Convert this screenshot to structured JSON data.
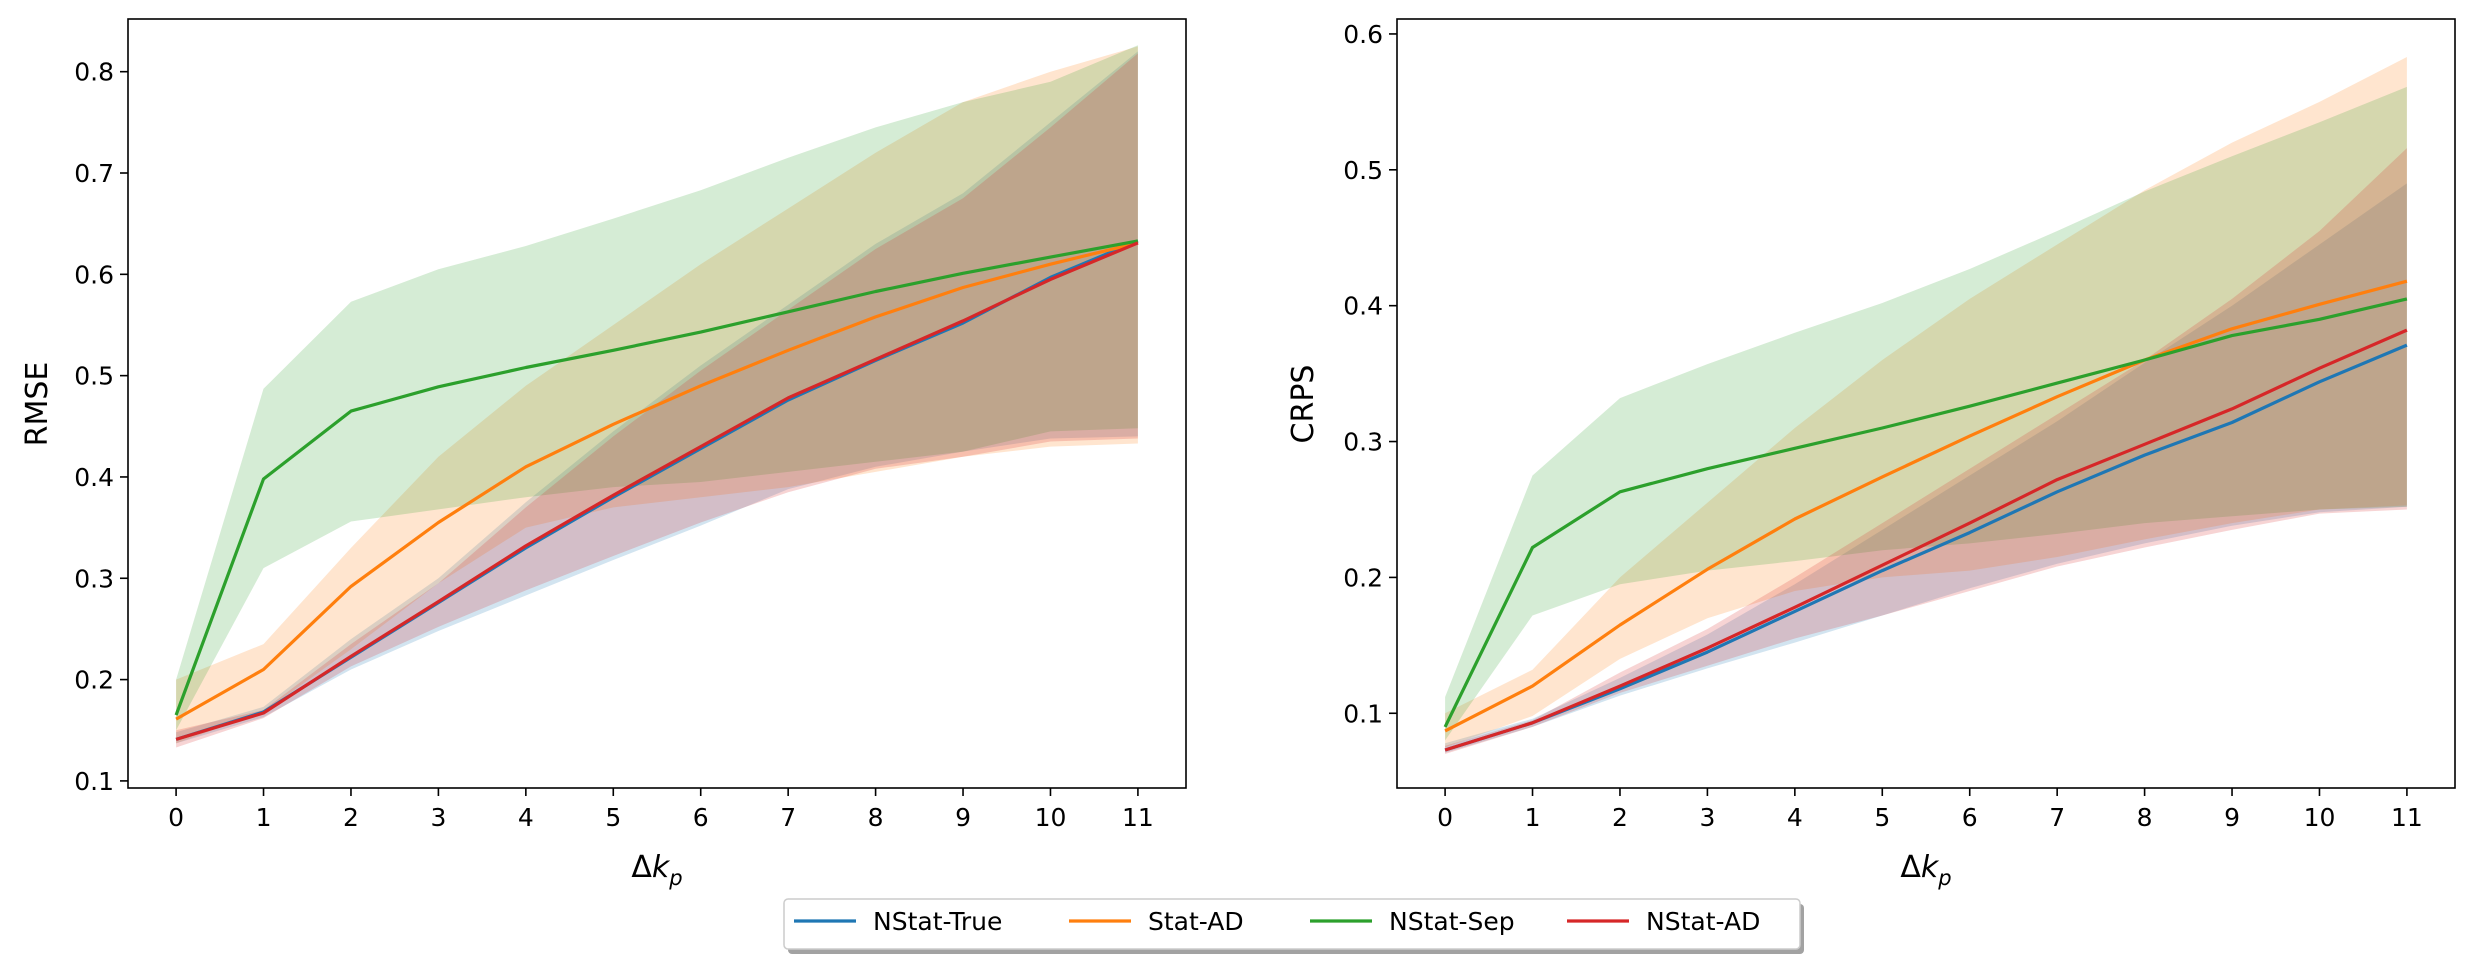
{
  "colors": {
    "NStat-True": "#1f77b4",
    "Stat-AD": "#ff7f0e",
    "NStat-Sep": "#2ca02c",
    "NStat-AD": "#d62728"
  },
  "legend": {
    "position": "bottom-center",
    "entries": [
      "NStat-True",
      "Stat-AD",
      "NStat-Sep",
      "NStat-AD"
    ]
  },
  "chart_data": [
    {
      "type": "line",
      "ylabel": "RMSE",
      "xlabel": "Δk_p",
      "x": [
        0,
        1,
        2,
        3,
        4,
        5,
        6,
        7,
        8,
        9,
        10,
        11
      ],
      "xlim": [
        -0.55,
        11.55
      ],
      "ylim": [
        0.093,
        0.852
      ],
      "yticks": [
        0.1,
        0.2,
        0.3,
        0.4,
        0.5,
        0.6,
        0.7,
        0.8
      ],
      "yticklabels": [
        "0.1",
        "0.2",
        "0.3",
        "0.4",
        "0.5",
        "0.6",
        "0.7",
        "0.8"
      ],
      "series": [
        {
          "name": "NStat-True",
          "values": [
            0.141,
            0.168,
            0.222,
            0.276,
            0.33,
            0.38,
            0.428,
            0.476,
            0.515,
            0.552,
            0.597,
            0.633
          ],
          "band_low": [
            0.137,
            0.163,
            0.21,
            0.248,
            0.283,
            0.318,
            0.352,
            0.388,
            0.41,
            0.425,
            0.438,
            0.44
          ],
          "band_high": [
            0.148,
            0.173,
            0.24,
            0.3,
            0.375,
            0.445,
            0.51,
            0.57,
            0.63,
            0.68,
            0.75,
            0.82
          ]
        },
        {
          "name": "Stat-AD",
          "values": [
            0.161,
            0.21,
            0.292,
            0.355,
            0.41,
            0.452,
            0.49,
            0.525,
            0.558,
            0.587,
            0.61,
            0.631
          ],
          "band_low": [
            0.137,
            0.168,
            0.23,
            0.295,
            0.35,
            0.37,
            0.38,
            0.39,
            0.405,
            0.42,
            0.43,
            0.433
          ],
          "band_high": [
            0.2,
            0.235,
            0.33,
            0.42,
            0.49,
            0.55,
            0.61,
            0.665,
            0.72,
            0.77,
            0.8,
            0.825
          ]
        },
        {
          "name": "NStat-Sep",
          "values": [
            0.165,
            0.398,
            0.465,
            0.489,
            0.508,
            0.525,
            0.543,
            0.563,
            0.583,
            0.601,
            0.617,
            0.633
          ],
          "band_low": [
            0.15,
            0.31,
            0.356,
            0.368,
            0.38,
            0.39,
            0.395,
            0.405,
            0.415,
            0.425,
            0.445,
            0.448
          ],
          "band_high": [
            0.2,
            0.487,
            0.573,
            0.605,
            0.628,
            0.655,
            0.683,
            0.715,
            0.745,
            0.77,
            0.79,
            0.826
          ]
        },
        {
          "name": "NStat-AD",
          "values": [
            0.141,
            0.167,
            0.223,
            0.277,
            0.332,
            0.382,
            0.43,
            0.478,
            0.516,
            0.554,
            0.595,
            0.631
          ],
          "band_low": [
            0.133,
            0.162,
            0.213,
            0.252,
            0.288,
            0.322,
            0.355,
            0.385,
            0.408,
            0.42,
            0.435,
            0.438
          ],
          "band_high": [
            0.15,
            0.17,
            0.235,
            0.295,
            0.37,
            0.44,
            0.505,
            0.565,
            0.625,
            0.675,
            0.745,
            0.818
          ]
        }
      ]
    },
    {
      "type": "line",
      "ylabel": "CRPS",
      "xlabel": "Δk_p",
      "x": [
        0,
        1,
        2,
        3,
        4,
        5,
        6,
        7,
        8,
        9,
        10,
        11
      ],
      "xlim": [
        -0.55,
        11.55
      ],
      "ylim": [
        0.045,
        0.611
      ],
      "yticks": [
        0.1,
        0.2,
        0.3,
        0.4,
        0.5,
        0.6
      ],
      "yticklabels": [
        "0.1",
        "0.2",
        "0.3",
        "0.4",
        "0.5",
        "0.6"
      ],
      "series": [
        {
          "name": "NStat-True",
          "values": [
            0.073,
            0.093,
            0.118,
            0.145,
            0.175,
            0.205,
            0.233,
            0.263,
            0.29,
            0.314,
            0.344,
            0.371
          ],
          "band_low": [
            0.071,
            0.09,
            0.113,
            0.133,
            0.152,
            0.172,
            0.192,
            0.21,
            0.225,
            0.238,
            0.248,
            0.252
          ],
          "band_high": [
            0.078,
            0.096,
            0.126,
            0.158,
            0.195,
            0.235,
            0.275,
            0.315,
            0.358,
            0.4,
            0.445,
            0.49
          ]
        },
        {
          "name": "Stat-AD",
          "values": [
            0.087,
            0.12,
            0.165,
            0.206,
            0.243,
            0.274,
            0.304,
            0.333,
            0.36,
            0.383,
            0.401,
            0.418
          ],
          "band_low": [
            0.075,
            0.098,
            0.14,
            0.17,
            0.19,
            0.2,
            0.205,
            0.215,
            0.228,
            0.24,
            0.25,
            0.253
          ],
          "band_high": [
            0.1,
            0.132,
            0.2,
            0.255,
            0.31,
            0.36,
            0.405,
            0.445,
            0.485,
            0.52,
            0.55,
            0.583
          ]
        },
        {
          "name": "NStat-Sep",
          "values": [
            0.09,
            0.222,
            0.263,
            0.28,
            0.295,
            0.31,
            0.326,
            0.343,
            0.36,
            0.378,
            0.39,
            0.405
          ],
          "band_low": [
            0.08,
            0.172,
            0.195,
            0.205,
            0.212,
            0.22,
            0.225,
            0.232,
            0.24,
            0.245,
            0.25,
            0.252
          ],
          "band_high": [
            0.112,
            0.275,
            0.332,
            0.357,
            0.38,
            0.402,
            0.427,
            0.455,
            0.484,
            0.51,
            0.535,
            0.561
          ]
        },
        {
          "name": "NStat-AD",
          "values": [
            0.073,
            0.093,
            0.12,
            0.148,
            0.178,
            0.209,
            0.24,
            0.272,
            0.298,
            0.324,
            0.354,
            0.382
          ],
          "band_low": [
            0.07,
            0.09,
            0.115,
            0.135,
            0.155,
            0.172,
            0.19,
            0.208,
            0.222,
            0.235,
            0.247,
            0.25
          ],
          "band_high": [
            0.076,
            0.095,
            0.13,
            0.162,
            0.2,
            0.24,
            0.28,
            0.32,
            0.36,
            0.405,
            0.455,
            0.516
          ]
        }
      ]
    }
  ]
}
